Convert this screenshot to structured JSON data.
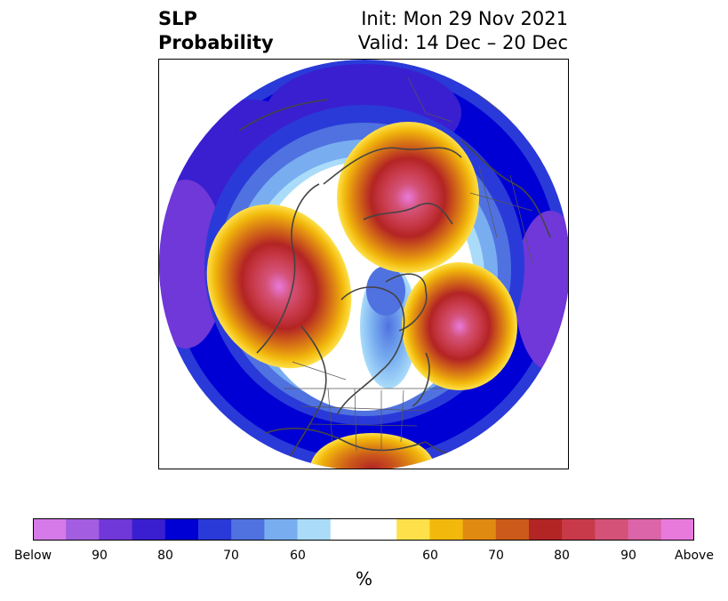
{
  "title": {
    "left_line1": "SLP",
    "left_line2": "Probability",
    "right_line1": "Init: Mon 29 Nov 2021",
    "right_line2": "Valid: 14 Dec – 20 Dec"
  },
  "map": {
    "projection": "north polar stereographic",
    "field": "SLP probability",
    "features": [
      {
        "kind": "below",
        "region": "Eurasia / Siberia (top arc)",
        "max_percent": 90
      },
      {
        "kind": "below",
        "region": "North Pacific / Aleutians (left)",
        "max_percent": 90
      },
      {
        "kind": "below",
        "region": "Europe / North Atlantic (right)",
        "max_percent": 90
      },
      {
        "kind": "below",
        "region": "Hudson Bay / eastern Canada",
        "max_percent": 70
      },
      {
        "kind": "above",
        "region": "Arctic Ocean / Siberian Arctic",
        "max_percent": 90
      },
      {
        "kind": "above",
        "region": "Alaska / Gulf of Alaska",
        "max_percent": 90
      },
      {
        "kind": "above",
        "region": "Greenland / North Atlantic",
        "max_percent": 90
      },
      {
        "kind": "above",
        "region": "Gulf of Mexico",
        "max_percent": 75
      }
    ]
  },
  "colorbar": {
    "colors": [
      "#d57ae8",
      "#a35de0",
      "#7038d8",
      "#3a1fd0",
      "#0000d4",
      "#2a3ad8",
      "#5072e0",
      "#78aef0",
      "#aadcfa",
      "#ffffff",
      "#ffffff",
      "#fee14a",
      "#f2b90c",
      "#e08a12",
      "#cc5a1a",
      "#b32424",
      "#c83a4a",
      "#d45278",
      "#dc64a8",
      "#e87adc"
    ],
    "tick_labels": [
      "Below",
      "90",
      "80",
      "70",
      "60",
      "60",
      "70",
      "80",
      "90",
      "Above"
    ],
    "unit": "%"
  }
}
